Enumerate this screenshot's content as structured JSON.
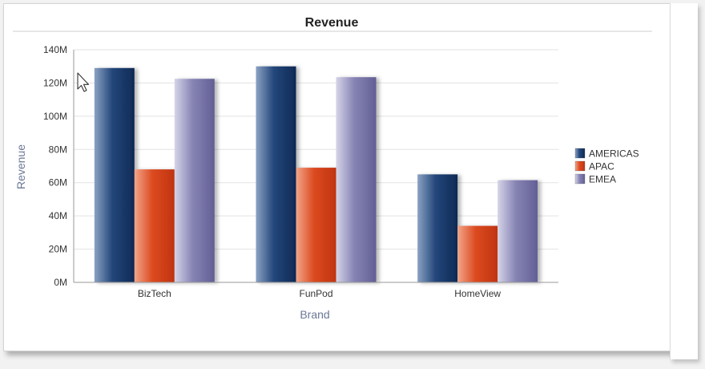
{
  "chart_data": {
    "type": "bar",
    "title": "Revenue",
    "xlabel": "Brand",
    "ylabel": "Revenue",
    "categories": [
      "BizTech",
      "FunPod",
      "HomeView"
    ],
    "ylim": [
      0,
      140000000
    ],
    "yticks": [
      {
        "value": 0,
        "label": "0M"
      },
      {
        "value": 20000000,
        "label": "20M"
      },
      {
        "value": 40000000,
        "label": "40M"
      },
      {
        "value": 60000000,
        "label": "60M"
      },
      {
        "value": 80000000,
        "label": "80M"
      },
      {
        "value": 100000000,
        "label": "100M"
      },
      {
        "value": 120000000,
        "label": "120M"
      },
      {
        "value": 140000000,
        "label": "140M"
      }
    ],
    "series": [
      {
        "name": "AMERICAS",
        "values": [
          129000000,
          130000000,
          65000000
        ],
        "color": "#1f3d6b"
      },
      {
        "name": "APAC",
        "values": [
          68000000,
          69000000,
          34000000
        ],
        "color": "#d2401a"
      },
      {
        "name": "EMEA",
        "values": [
          122500000,
          123500000,
          61500000
        ],
        "color": "#7b78a8"
      }
    ],
    "legend_position": "right",
    "grid": true
  }
}
